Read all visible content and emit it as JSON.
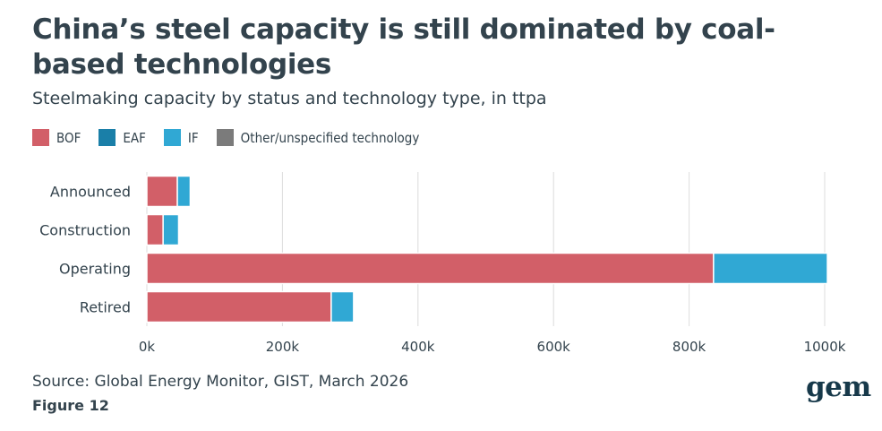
{
  "header": {
    "title": "China’s steel capacity is still dominated by coal-based technologies",
    "subtitle": "Steelmaking capacity by status and technology type, in ttpa"
  },
  "footer": {
    "source": "Source: Global Energy Monitor, GIST, March 2026",
    "figure": "Figure 12",
    "logo": "gem"
  },
  "colors": {
    "BOF": "#d25f68",
    "EAF": "#1a7fa8",
    "IF": "#30a8d4",
    "Other": "#7b7b7b",
    "grid": "#dcdcdc",
    "text": "#33434d"
  },
  "chart_data": {
    "type": "bar",
    "orientation": "horizontal",
    "stacked": true,
    "title": "China’s steel capacity is still dominated by coal-based technologies",
    "subtitle": "Steelmaking capacity by status and technology type, in ttpa",
    "categories": [
      "Announced",
      "Construction",
      "Operating",
      "Retired"
    ],
    "series": [
      {
        "name": "BOF",
        "values": [
          45000,
          24000,
          836000,
          272000
        ]
      },
      {
        "name": "EAF",
        "values": [
          0,
          0,
          0,
          0
        ]
      },
      {
        "name": "IF",
        "values": [
          19000,
          23000,
          168000,
          33000
        ]
      },
      {
        "name": "Other/unspecified technology",
        "values": [
          0,
          1500,
          0,
          0
        ]
      }
    ],
    "xlim": [
      0,
      1000000
    ],
    "xticks": [
      0,
      200000,
      400000,
      600000,
      800000,
      1000000
    ],
    "xtick_labels": [
      "0k",
      "200k",
      "400k",
      "600k",
      "800k",
      "1000k"
    ],
    "grid": "vertical",
    "legend_position": "top-left"
  }
}
